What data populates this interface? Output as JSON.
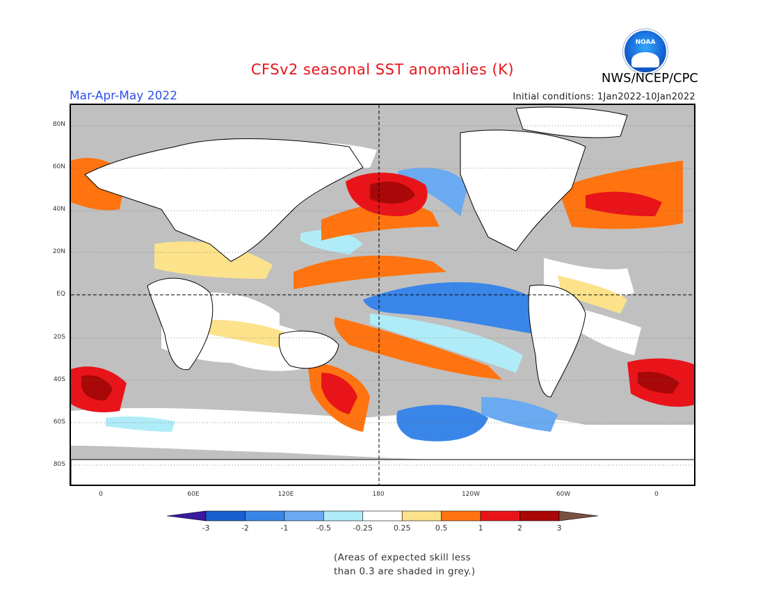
{
  "header": {
    "title": "CFSv2 seasonal SST anomalies (K)",
    "org": "NWS/NCEP/CPC",
    "logo_text": "NOAA",
    "season": "Mar-Apr-May 2022",
    "initial_conditions": "Initial conditions: 1Jan2022-10Jan2022"
  },
  "map": {
    "lat_labels": [
      "80N",
      "60N",
      "40N",
      "20N",
      "EQ",
      "20S",
      "40S",
      "60S",
      "80S"
    ],
    "lon_labels": [
      "0",
      "60E",
      "120E",
      "180",
      "120W",
      "60W",
      "0"
    ]
  },
  "colorbar": {
    "levels": [
      "-3",
      "-2",
      "-1",
      "-0.5",
      "-0.25",
      "0.25",
      "0.5",
      "1",
      "2",
      "3"
    ],
    "colors": [
      "#3a1aa0",
      "#1a5fd0",
      "#3a86e8",
      "#6aaaf0",
      "#b0ecf8",
      "#ffffff",
      "#fce28a",
      "#ff7410",
      "#e8141a",
      "#a80808",
      "#7a5040"
    ]
  },
  "note": {
    "line1": "(Areas of expected skill less",
    "line2": "than 0.3 are shaded in grey.)"
  },
  "colors": {
    "title": "#e8141a",
    "season": "#2e50e8",
    "mask": "#c0c0c0"
  }
}
